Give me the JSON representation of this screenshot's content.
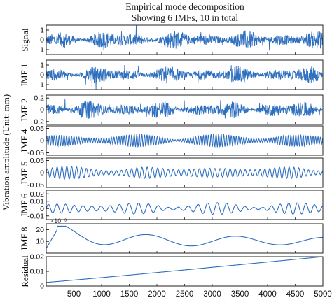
{
  "chart_data": {
    "type": "line",
    "title": "Empirical mode decomposition",
    "subtitle": "Showing 6 IMFs,  10 in total",
    "ylabel": "Vibration amplitude (Unit: mm)",
    "xlim": [
      0,
      5000
    ],
    "xticks": [
      500,
      1000,
      1500,
      2000,
      2500,
      3000,
      3500,
      4000,
      4500,
      5000
    ],
    "colors": {
      "signal": "#2f6fbf",
      "frame": "#222222",
      "background": "#ffffff"
    },
    "panels": [
      {
        "label": "Signal",
        "ylim": [
          -1.5,
          1.5
        ],
        "yticks": [
          -1,
          0,
          1
        ],
        "ytick_labels": [
          "-1",
          "0",
          "1"
        ],
        "kind": "noise",
        "amplitude": 0.75
      },
      {
        "label": "IMF 1",
        "ylim": [
          -1.5,
          1.5
        ],
        "yticks": [
          -1,
          0,
          1
        ],
        "ytick_labels": [
          "-1",
          "0",
          "1"
        ],
        "kind": "noise",
        "amplitude": 0.7
      },
      {
        "label": "IMF 2",
        "ylim": [
          -0.25,
          0.25
        ],
        "yticks": [
          -0.2,
          0,
          0.2
        ],
        "ytick_labels": [
          "-0.2",
          "0",
          "0.2"
        ],
        "kind": "noise",
        "amplitude": 0.12
      },
      {
        "label": "IMF 4",
        "ylim": [
          -0.06,
          0.06
        ],
        "yticks": [
          -0.05,
          0,
          0.05
        ],
        "ytick_labels": [
          "-0.05",
          "0",
          "0.05"
        ],
        "kind": "wave",
        "amplitude": 0.02,
        "cycles": 110
      },
      {
        "label": "IMF 5",
        "ylim": [
          -0.06,
          0.06
        ],
        "yticks": [
          -0.05,
          0,
          0.05
        ],
        "ytick_labels": [
          "-0.05",
          "0",
          "0.05"
        ],
        "kind": "wave",
        "amplitude": 0.02,
        "cycles": 55
      },
      {
        "label": "IMF 6",
        "ylim": [
          -0.015,
          0.025
        ],
        "yticks": [
          -0.01,
          0,
          0.01,
          0.02
        ],
        "ytick_labels": [
          "-0.01",
          "0",
          "0.01",
          "0.02"
        ],
        "kind": "wave",
        "amplitude": 0.006,
        "cycles": 30
      },
      {
        "label": "IMF 8",
        "ylim": [
          0,
          0.025
        ],
        "yticks": [
          0.01,
          0.02
        ],
        "ytick_labels": [
          "10",
          "20"
        ],
        "kind": "imf8",
        "exponent_label": "×10⁻³"
      },
      {
        "label": "Residual",
        "ylim": [
          0,
          0.02
        ],
        "yticks": [
          0,
          0.01,
          0.02
        ],
        "ytick_labels": [
          "0",
          "0.01",
          "0.02"
        ],
        "kind": "residual"
      }
    ]
  }
}
